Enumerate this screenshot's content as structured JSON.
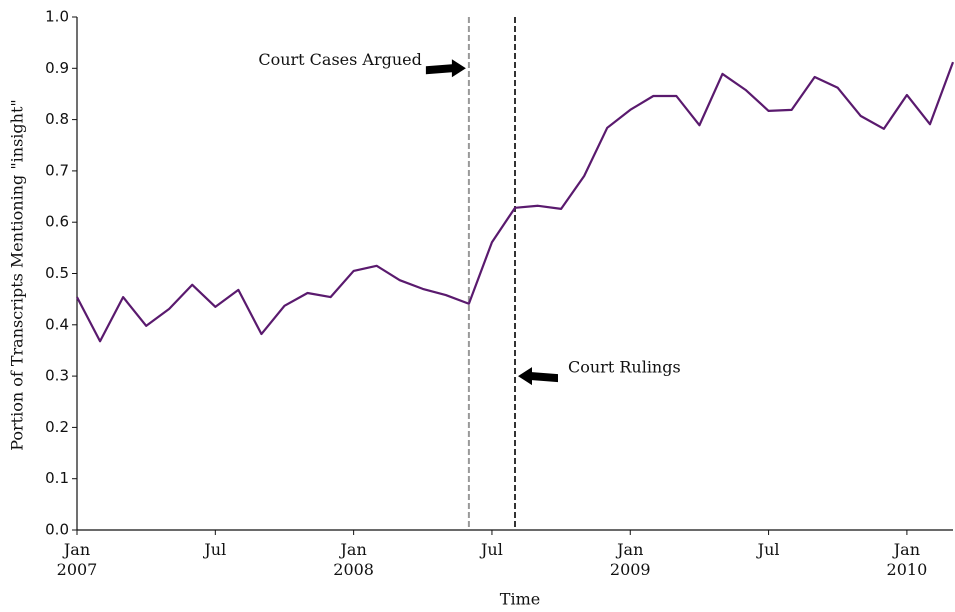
{
  "chart_data": {
    "type": "line",
    "xlabel": "Time",
    "ylabel": "Portion of Transcripts Mentioning \"insight\"",
    "x": [
      "2007-01",
      "2007-02",
      "2007-03",
      "2007-04",
      "2007-05",
      "2007-06",
      "2007-07",
      "2007-08",
      "2007-09",
      "2007-10",
      "2007-11",
      "2007-12",
      "2008-01",
      "2008-02",
      "2008-03",
      "2008-04",
      "2008-05",
      "2008-06",
      "2008-07",
      "2008-08",
      "2008-09",
      "2008-10",
      "2008-11",
      "2008-12",
      "2009-01",
      "2009-02",
      "2009-03",
      "2009-04",
      "2009-05",
      "2009-06",
      "2009-07",
      "2009-08",
      "2009-09",
      "2009-10",
      "2009-11",
      "2009-12",
      "2010-01",
      "2010-02",
      "2010-03"
    ],
    "values": [
      0.454,
      0.368,
      0.454,
      0.398,
      0.431,
      0.478,
      0.435,
      0.468,
      0.382,
      0.437,
      0.462,
      0.454,
      0.505,
      0.515,
      0.487,
      0.47,
      0.458,
      0.441,
      0.561,
      0.628,
      0.632,
      0.626,
      0.69,
      0.784,
      0.819,
      0.846,
      0.846,
      0.789,
      0.889,
      0.858,
      0.817,
      0.819,
      0.883,
      0.862,
      0.807,
      0.782,
      0.848,
      0.791,
      0.912
    ],
    "color": "#5a1a6e",
    "xlim": [
      "2007-01",
      "2010-03"
    ],
    "xticks": [
      {
        "value": "2007-01",
        "label": "Jan\n2007"
      },
      {
        "value": "2007-07",
        "label": "Jul"
      },
      {
        "value": "2008-01",
        "label": "Jan\n2008"
      },
      {
        "value": "2008-07",
        "label": "Jul"
      },
      {
        "value": "2009-01",
        "label": "Jan\n2009"
      },
      {
        "value": "2009-07",
        "label": "Jul"
      },
      {
        "value": "2010-01",
        "label": "Jan\n2010"
      }
    ],
    "ylim": [
      0,
      1
    ],
    "yticks": [
      {
        "value": 0,
        "label": "0.0"
      },
      0.1,
      0.2,
      0.3,
      0.4,
      0.5,
      0.6,
      0.7,
      0.8,
      0.9,
      {
        "value": 1,
        "label": "1.0"
      }
    ],
    "annotations": [
      {
        "text": "Court Cases Argued",
        "x": "2008-06",
        "y": 0.9,
        "color": "#999999"
      },
      {
        "text": "Court Rulings",
        "x": "2008-08",
        "y": 0.3,
        "color": "#333333"
      }
    ]
  }
}
